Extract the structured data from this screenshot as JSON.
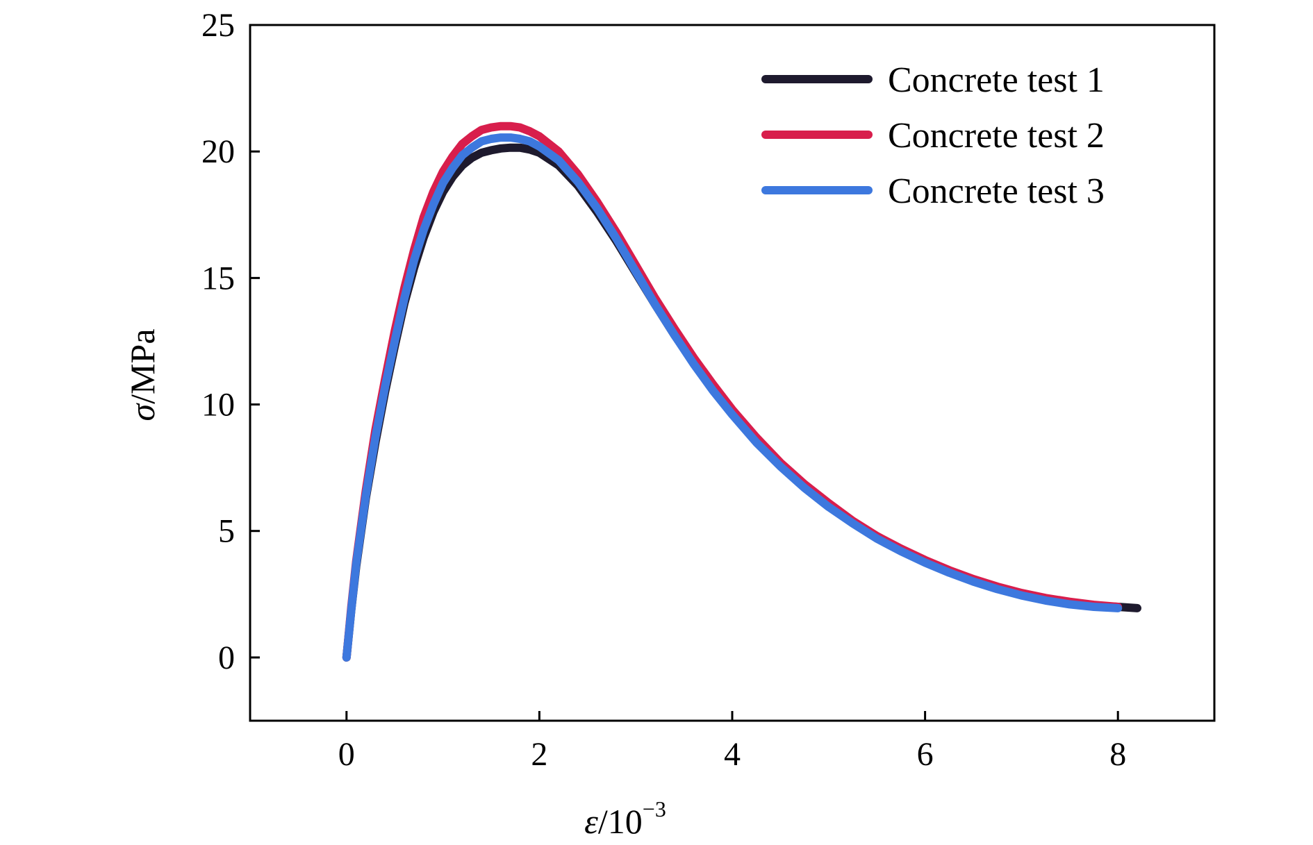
{
  "chart_data": {
    "type": "line",
    "title": "",
    "xlabel": {
      "symbol": "ε",
      "rest": "/10",
      "exponent": "−3"
    },
    "ylabel": {
      "symbol": "σ",
      "rest": "/MPa"
    },
    "xlim": [
      -1,
      9
    ],
    "ylim": [
      -2.5,
      25
    ],
    "xticks": [
      0,
      2,
      4,
      6,
      8
    ],
    "yticks": [
      0,
      5,
      10,
      15,
      20,
      25
    ],
    "grid": false,
    "legend_position": "top-right",
    "series": [
      {
        "name": "Concrete test 1",
        "color": "#1e1a2e",
        "x": [
          0,
          0.05,
          0.1,
          0.2,
          0.3,
          0.4,
          0.5,
          0.6,
          0.7,
          0.8,
          0.9,
          1.0,
          1.1,
          1.2,
          1.3,
          1.4,
          1.5,
          1.6,
          1.7,
          1.8,
          1.9,
          2.0,
          2.2,
          2.4,
          2.6,
          2.8,
          3.0,
          3.2,
          3.4,
          3.6,
          3.8,
          4.0,
          4.25,
          4.5,
          4.75,
          5.0,
          5.25,
          5.5,
          5.75,
          6.0,
          6.25,
          6.5,
          6.75,
          7.0,
          7.25,
          7.5,
          7.75,
          8.0,
          8.2
        ],
        "y": [
          0,
          1.9,
          3.6,
          6.3,
          8.5,
          10.5,
          12.3,
          14.0,
          15.4,
          16.6,
          17.6,
          18.4,
          19.0,
          19.45,
          19.75,
          19.95,
          20.05,
          20.12,
          20.15,
          20.15,
          20.08,
          19.95,
          19.45,
          18.65,
          17.6,
          16.45,
          15.2,
          13.95,
          12.75,
          11.65,
          10.6,
          9.65,
          8.55,
          7.6,
          6.75,
          6.0,
          5.35,
          4.75,
          4.25,
          3.8,
          3.4,
          3.05,
          2.75,
          2.5,
          2.3,
          2.15,
          2.05,
          2.0,
          1.95
        ]
      },
      {
        "name": "Concrete test 2",
        "color": "#d81e4c",
        "x": [
          0,
          0.05,
          0.1,
          0.2,
          0.3,
          0.4,
          0.5,
          0.6,
          0.7,
          0.8,
          0.9,
          1.0,
          1.1,
          1.2,
          1.3,
          1.4,
          1.5,
          1.6,
          1.7,
          1.8,
          1.9,
          2.0,
          2.2,
          2.4,
          2.6,
          2.8,
          3.0,
          3.2,
          3.4,
          3.6,
          3.8,
          4.0,
          4.25,
          4.5,
          4.75,
          5.0,
          5.25,
          5.5,
          5.75,
          6.0,
          6.25,
          6.5,
          6.75,
          7.0,
          7.25,
          7.5,
          7.75,
          8.0
        ],
        "y": [
          0,
          2.0,
          3.8,
          6.6,
          9.0,
          11.0,
          12.9,
          14.6,
          16.1,
          17.4,
          18.4,
          19.2,
          19.8,
          20.3,
          20.6,
          20.85,
          20.95,
          21.0,
          21.0,
          20.95,
          20.8,
          20.6,
          20.0,
          19.1,
          18.0,
          16.8,
          15.5,
          14.2,
          13.0,
          11.85,
          10.8,
          9.8,
          8.7,
          7.7,
          6.85,
          6.1,
          5.4,
          4.8,
          4.3,
          3.85,
          3.45,
          3.1,
          2.8,
          2.55,
          2.35,
          2.2,
          2.08,
          2.0
        ]
      },
      {
        "name": "Concrete test 3",
        "color": "#3d78de",
        "x": [
          0,
          0.05,
          0.1,
          0.2,
          0.3,
          0.4,
          0.5,
          0.6,
          0.7,
          0.8,
          0.9,
          1.0,
          1.1,
          1.2,
          1.3,
          1.4,
          1.5,
          1.6,
          1.7,
          1.8,
          1.9,
          2.0,
          2.2,
          2.4,
          2.6,
          2.8,
          3.0,
          3.2,
          3.4,
          3.6,
          3.8,
          4.0,
          4.25,
          4.5,
          4.75,
          5.0,
          5.25,
          5.5,
          5.75,
          6.0,
          6.25,
          6.5,
          6.75,
          7.0,
          7.25,
          7.5,
          7.75,
          8.0
        ],
        "y": [
          0,
          1.9,
          3.7,
          6.4,
          8.7,
          10.7,
          12.5,
          14.2,
          15.7,
          16.9,
          17.9,
          18.75,
          19.35,
          19.85,
          20.15,
          20.4,
          20.5,
          20.55,
          20.55,
          20.5,
          20.4,
          20.2,
          19.65,
          18.8,
          17.75,
          16.55,
          15.25,
          13.95,
          12.75,
          11.6,
          10.55,
          9.6,
          8.5,
          7.55,
          6.7,
          5.95,
          5.3,
          4.7,
          4.2,
          3.75,
          3.35,
          3.0,
          2.7,
          2.45,
          2.25,
          2.1,
          2.0,
          1.95
        ]
      }
    ]
  }
}
